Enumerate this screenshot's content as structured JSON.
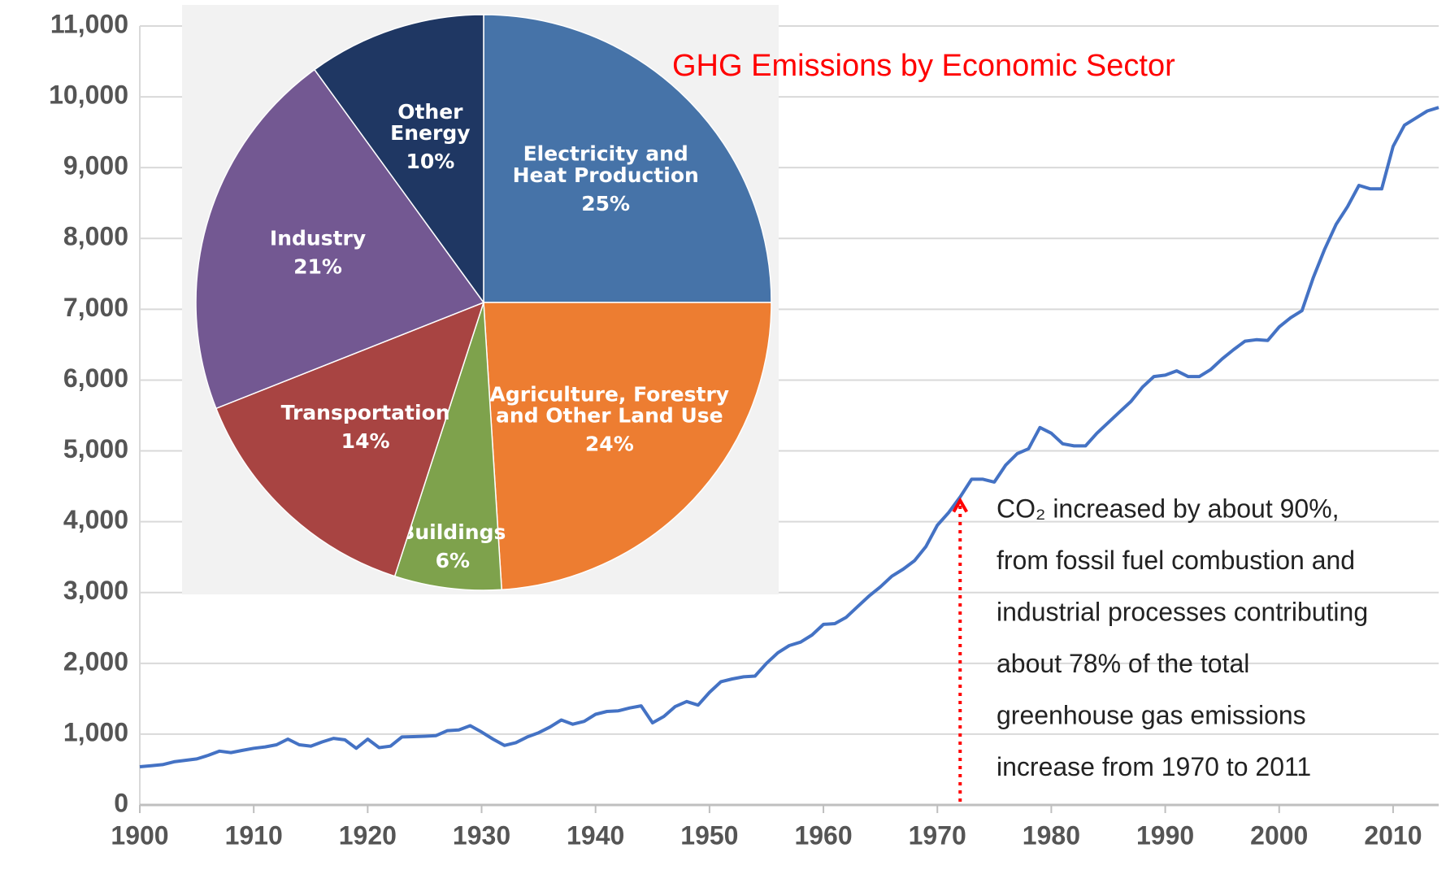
{
  "chart_data": [
    {
      "type": "line",
      "x": [
        1900,
        1901,
        1902,
        1903,
        1904,
        1905,
        1906,
        1907,
        1908,
        1909,
        1910,
        1911,
        1912,
        1913,
        1914,
        1915,
        1916,
        1917,
        1918,
        1919,
        1920,
        1921,
        1922,
        1923,
        1924,
        1925,
        1926,
        1927,
        1928,
        1929,
        1930,
        1931,
        1932,
        1933,
        1934,
        1935,
        1936,
        1937,
        1938,
        1939,
        1940,
        1941,
        1942,
        1943,
        1944,
        1945,
        1946,
        1947,
        1948,
        1949,
        1950,
        1951,
        1952,
        1953,
        1954,
        1955,
        1956,
        1957,
        1958,
        1959,
        1960,
        1961,
        1962,
        1963,
        1964,
        1965,
        1966,
        1967,
        1968,
        1969,
        1970,
        1971,
        1972,
        1973,
        1974,
        1975,
        1976,
        1977,
        1978,
        1979,
        1980,
        1981,
        1982,
        1983,
        1984,
        1985,
        1986,
        1987,
        1988,
        1989,
        1990,
        1991,
        1992,
        1993,
        1994,
        1995,
        1996,
        1997,
        1998,
        1999,
        2000,
        2001,
        2002,
        2003,
        2004,
        2005,
        2006,
        2007,
        2008,
        2009,
        2010,
        2011,
        2012,
        2013,
        2014
      ],
      "values": [
        540,
        555,
        570,
        610,
        630,
        650,
        700,
        760,
        740,
        770,
        800,
        820,
        850,
        930,
        850,
        830,
        890,
        940,
        920,
        800,
        930,
        810,
        830,
        960,
        965,
        970,
        980,
        1050,
        1060,
        1120,
        1030,
        930,
        840,
        880,
        960,
        1020,
        1100,
        1200,
        1140,
        1180,
        1280,
        1320,
        1330,
        1370,
        1400,
        1160,
        1250,
        1390,
        1460,
        1410,
        1590,
        1740,
        1780,
        1810,
        1820,
        2000,
        2150,
        2250,
        2300,
        2400,
        2550,
        2560,
        2650,
        2800,
        2950,
        3080,
        3230,
        3330,
        3450,
        3650,
        3950,
        4130,
        4350,
        4600,
        4600,
        4560,
        4800,
        4960,
        5030,
        5330,
        5250,
        5100,
        5070,
        5070,
        5250,
        5400,
        5550,
        5700,
        5900,
        6050,
        6070,
        6130,
        6050,
        6050,
        6150,
        6300,
        6430,
        6550,
        6570,
        6560,
        6750,
        6880,
        6980,
        7450,
        7850,
        8200,
        8450,
        8750,
        8700,
        8700,
        9300,
        9600,
        9700,
        9800,
        9850
      ],
      "color": "#4472c4",
      "xlim": [
        1900,
        2014
      ],
      "xticks": [
        1900,
        1910,
        1920,
        1930,
        1940,
        1950,
        1960,
        1970,
        1980,
        1990,
        2000,
        2010
      ],
      "ylim": [
        0,
        11000
      ],
      "yticks": [
        0,
        {
          "value": 1000,
          "label": "1,000"
        },
        {
          "value": 2000,
          "label": "2,000"
        },
        {
          "value": 3000,
          "label": "3,000"
        },
        {
          "value": 4000,
          "label": "4,000"
        },
        {
          "value": 5000,
          "label": "5,000"
        },
        {
          "value": 6000,
          "label": "6,000"
        },
        {
          "value": 7000,
          "label": "7,000"
        },
        {
          "value": 8000,
          "label": "8,000"
        },
        {
          "value": 9000,
          "label": "9,000"
        },
        {
          "value": 10000,
          "label": "10,000"
        },
        {
          "value": 11000,
          "label": "11,000"
        }
      ],
      "grid": true,
      "annotation": {
        "x": 1972,
        "y": 4300,
        "color": "#ff0000",
        "lines": [
          "CO₂ increased by about 90%,",
          "from fossil fuel combustion and",
          "industrial processes contributing",
          "about 78% of the total",
          "greenhouse gas emissions",
          "increase from 1970 to 2011"
        ]
      }
    },
    {
      "type": "pie",
      "title": "GHG Emissions by Economic Sector",
      "categories": [
        "Electricity and\nHeat Production",
        "Agriculture, Forestry\nand Other Land Use",
        "Buildings",
        "Transportation",
        "Industry",
        "Other\nEnergy"
      ],
      "values": [
        25,
        24,
        6,
        14,
        21,
        10
      ],
      "value_labels": [
        "25%",
        "24%",
        "6%",
        "14%",
        "21%",
        "10%"
      ],
      "colors": [
        "#4673a8",
        "#ed7d31",
        "#7ea24c",
        "#a84442",
        "#735892",
        "#1f3763"
      ]
    }
  ]
}
